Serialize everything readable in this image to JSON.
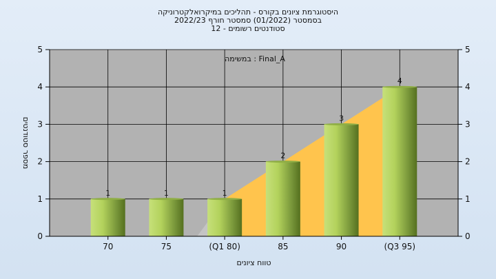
{
  "title_lines": [
    "היסטוגרמת ציונים בקורס - תהליכים במיקרואלקטרוניקה",
    "בסמסטר  (01/2022)  סמסטר חורף 2022/23",
    "סטודנטים רשומים - 12"
  ],
  "legend_text": "במשימה : Final_A",
  "colors": {
    "plot_bg": "#b2b2b2",
    "bar_light": "#c6e07a",
    "bar_dark": "#55701f",
    "cumulative_fill": "#ffc44d",
    "pre_fill": "#c4c4c4"
  },
  "chart_data": {
    "type": "bar",
    "title": "היסטוגרמת ציונים בקורס - תהליכים במיקרואלקטרוניקה",
    "xlabel": "טווח ציונים",
    "ylabel": "מספר סטודנטים",
    "categories": [
      "70",
      "75",
      "(Q1 80)",
      "85",
      "90",
      "(Q3 95)"
    ],
    "values": [
      1,
      1,
      1,
      2,
      3,
      4
    ],
    "data_labels": [
      "1",
      "1",
      "1",
      "2",
      "3",
      "4"
    ],
    "ylim": [
      0,
      5
    ],
    "yticks": [
      "0",
      "1",
      "2",
      "3",
      "4",
      "5"
    ],
    "grid": true,
    "secondary_y_axis": true,
    "shaded_area": {
      "from_category": "(Q1 80)",
      "to_category": "(Q3 95)",
      "values": [
        1,
        4
      ]
    }
  }
}
